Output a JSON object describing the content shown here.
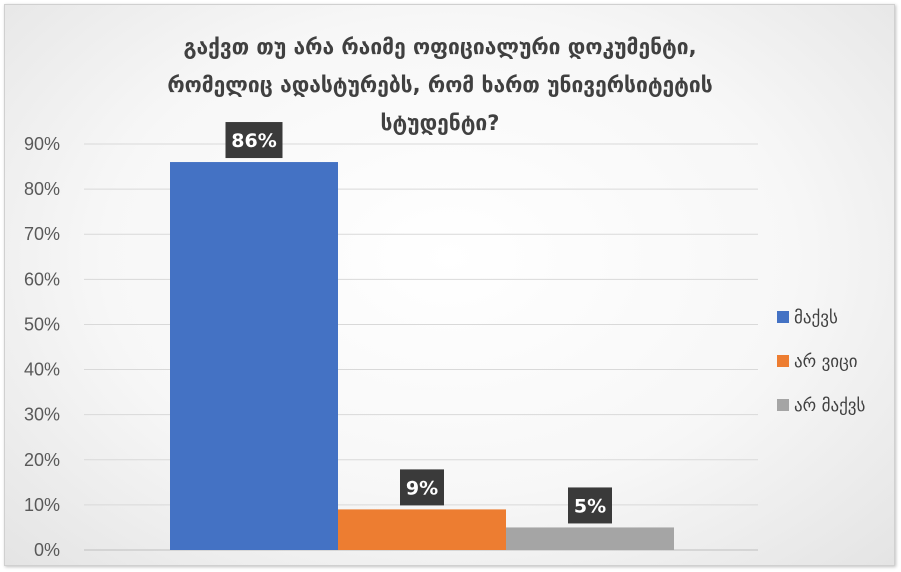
{
  "chart_data": {
    "type": "bar",
    "title": "გაქვთ თუ არა რაიმე ოფიციალური დოკუმენტი, რომელიც ადასტურებს, რომ ხართ უნივერსიტეტის სტუდენტი?",
    "title_lines": [
      "გაქვთ თუ არა რაიმე ოფიციალური დოკუმენტი,",
      "რომელიც ადასტურებს, რომ ხართ უნივერსიტეტის",
      "სტუდენტი?"
    ],
    "xlabel": "",
    "ylabel": "",
    "ylim": [
      0,
      0.9
    ],
    "y_ticks": [
      "0%",
      "10%",
      "20%",
      "30%",
      "40%",
      "50%",
      "60%",
      "70%",
      "80%",
      "90%"
    ],
    "grid": true,
    "legend_position": "right",
    "series": [
      {
        "name": "მაქვს",
        "values": [
          0.86
        ],
        "label": "86%",
        "color": "#4472C4"
      },
      {
        "name": "არ ვიცი",
        "values": [
          0.09
        ],
        "label": "9%",
        "color": "#ED7D31"
      },
      {
        "name": "არ მაქვს",
        "values": [
          0.05
        ],
        "label": "5%",
        "color": "#A5A5A5"
      }
    ]
  }
}
